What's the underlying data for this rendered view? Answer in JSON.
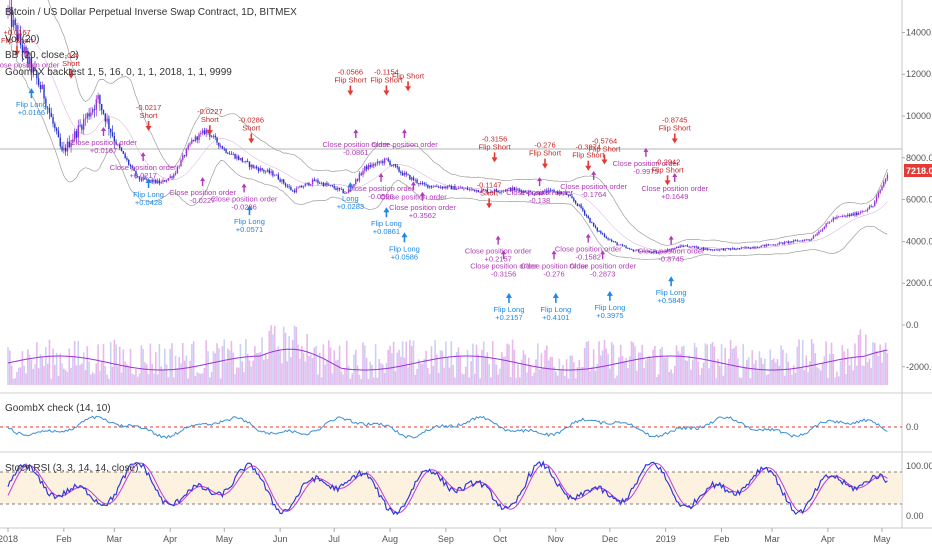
{
  "header": {
    "symbol_line": "Bitcoin / US Dollar Perpetual Inverse Swap Contract, 1D, BITMEX",
    "vol_line": "Vol (20)",
    "bb_line": "BB (20, close, 2)",
    "strategy_line": "GoombX backtest 1, 5, 16, 0, 1, 1, 2018, 1, 1, 9999"
  },
  "panes": {
    "check_label": "GoombX check (14, 10)",
    "rsi_label": "Stoch RSI (3, 3, 14, 14, close)"
  },
  "colors": {
    "up": "#9b30d9",
    "down": "#2633c9",
    "bb": "#9e9e9e",
    "vol_up": "#e1a8e8",
    "vol_down": "#bcc6f2",
    "vol_ma": "#9b30d9",
    "check_line": "#3a8fd6",
    "rsi_k": "#2f3ad9",
    "rsi_d": "#c23ad6",
    "rsi_band": "#fdf1e0",
    "ref_red": "#e53935"
  },
  "chart_data": {
    "type": "candlestick",
    "x_axis_labels": [
      "2018",
      "Feb",
      "Mar",
      "Apr",
      "May",
      "Jun",
      "Jul",
      "Aug",
      "Sep",
      "Oct",
      "Nov",
      "Dec",
      "2019",
      "Feb",
      "Mar",
      "Apr",
      "May"
    ],
    "price_axis": {
      "ticks": [
        "14000.0",
        "12000.0",
        "10000.0",
        "8000.0",
        "6000.0",
        "4000.0",
        "2000.0",
        "0.0",
        "-2000.0"
      ],
      "current_price": "7218.0",
      "guide_value": 8000
    },
    "check_axis_ticks": [
      "0.0"
    ],
    "rsi_axis_ticks": [
      "100.00",
      "0.00"
    ],
    "price_path": [
      [
        0,
        15000
      ],
      [
        8,
        13200
      ],
      [
        20,
        11000
      ],
      [
        30,
        8200
      ],
      [
        40,
        9500
      ],
      [
        50,
        10800
      ],
      [
        60,
        8700
      ],
      [
        72,
        7000
      ],
      [
        85,
        6800
      ],
      [
        92,
        7200
      ],
      [
        102,
        8800
      ],
      [
        110,
        9300
      ],
      [
        120,
        8400
      ],
      [
        135,
        7600
      ],
      [
        148,
        7200
      ],
      [
        158,
        6400
      ],
      [
        170,
        6900
      ],
      [
        180,
        6600
      ],
      [
        188,
        6300
      ],
      [
        198,
        7500
      ],
      [
        210,
        7900
      ],
      [
        218,
        7300
      ],
      [
        230,
        6700
      ],
      [
        242,
        6600
      ],
      [
        255,
        6500
      ],
      [
        268,
        6400
      ],
      [
        280,
        6500
      ],
      [
        292,
        6300
      ],
      [
        302,
        6400
      ],
      [
        310,
        6250
      ],
      [
        318,
        5600
      ],
      [
        326,
        4600
      ],
      [
        335,
        4000
      ],
      [
        345,
        3600
      ],
      [
        360,
        3450
      ],
      [
        375,
        3800
      ],
      [
        390,
        3600
      ],
      [
        405,
        3650
      ],
      [
        420,
        3800
      ],
      [
        432,
        3950
      ],
      [
        445,
        4100
      ],
      [
        458,
        5100
      ],
      [
        470,
        5300
      ],
      [
        480,
        5700
      ],
      [
        488,
        7200
      ]
    ],
    "annotations": [
      {
        "x": 5,
        "p": 13600,
        "type": "flip-short",
        "pct": "+0.0167",
        "label": "Flip Short"
      },
      {
        "x": 10,
        "p": 12600,
        "type": "close",
        "pct": "",
        "label": "Close position order"
      },
      {
        "x": 13,
        "p": 11000,
        "type": "flip-long",
        "pct": "+0.0166",
        "label": "Flip Long"
      },
      {
        "x": 35,
        "p": 12500,
        "type": "flip-short",
        "pct": "-0.4",
        "label": "Short"
      },
      {
        "x": 53,
        "p": 8900,
        "type": "close",
        "pct": "+0.0167",
        "label": "Close position order"
      },
      {
        "x": 75,
        "p": 7700,
        "type": "close",
        "pct": "+0.0217",
        "label": "Close position order"
      },
      {
        "x": 78,
        "p": 10000,
        "type": "flip-short",
        "pct": "-0.0217",
        "label": "Short"
      },
      {
        "x": 78,
        "p": 6700,
        "type": "flip-long",
        "pct": "+0.0428",
        "label": "Flip Long"
      },
      {
        "x": 112,
        "p": 9800,
        "type": "flip-short",
        "pct": "-0.0227",
        "label": "Short"
      },
      {
        "x": 108,
        "p": 6500,
        "type": "close",
        "pct": "-0.0227",
        "label": "Close position order"
      },
      {
        "x": 135,
        "p": 9400,
        "type": "flip-short",
        "pct": "-0.0286",
        "label": "Short"
      },
      {
        "x": 134,
        "p": 5400,
        "type": "flip-long",
        "pct": "+0.0571",
        "label": "Flip Long"
      },
      {
        "x": 131,
        "p": 6200,
        "type": "close",
        "pct": "-0.0286",
        "label": "Close position order"
      },
      {
        "x": 190,
        "p": 11700,
        "type": "flip-short",
        "pct": "-0.0566",
        "label": "Flip Short"
      },
      {
        "x": 190,
        "p": 6500,
        "type": "flip-long",
        "pct": "+0.0283",
        "label": "Long"
      },
      {
        "x": 193,
        "p": 8800,
        "type": "close",
        "pct": "-0.0861",
        "label": "Close position order"
      },
      {
        "x": 210,
        "p": 11700,
        "type": "flip-short",
        "pct": "-0.1154",
        "label": "Flip Short"
      },
      {
        "x": 207,
        "p": 6700,
        "type": "close",
        "pct": "-0.0566",
        "label": "Close position order"
      },
      {
        "x": 210,
        "p": 5300,
        "type": "flip-long",
        "pct": "+0.0861",
        "label": "Flip Long"
      },
      {
        "x": 222,
        "p": 11900,
        "type": "flip-short",
        "pct": "",
        "label": "Flip Short"
      },
      {
        "x": 220,
        "p": 8800,
        "type": "close",
        "pct": "",
        "label": "Close position order"
      },
      {
        "x": 225,
        "p": 6300,
        "type": "close",
        "pct": "",
        "label": "Close position order"
      },
      {
        "x": 230,
        "p": 5800,
        "type": "close",
        "pct": "+0.3562",
        "label": "Close position order"
      },
      {
        "x": 220,
        "p": 4100,
        "type": "flip-long",
        "pct": "+0.0586",
        "label": "Flip Long"
      },
      {
        "x": 270,
        "p": 8500,
        "type": "flip-short",
        "pct": "-0.3156",
        "label": "Flip Short"
      },
      {
        "x": 267,
        "p": 6300,
        "type": "flip-short",
        "pct": "-0.1147",
        "label": "Short"
      },
      {
        "x": 272,
        "p": 3700,
        "type": "close",
        "pct": "+0.2157",
        "label": "Close position order"
      },
      {
        "x": 275,
        "p": 3000,
        "type": "close",
        "pct": "-0.3156",
        "label": "Close position order"
      },
      {
        "x": 278,
        "p": 1200,
        "type": "flip-long",
        "pct": "+0.2157",
        "label": "Flip Long"
      },
      {
        "x": 298,
        "p": 8200,
        "type": "flip-short",
        "pct": "-0.276",
        "label": "Flip Short"
      },
      {
        "x": 295,
        "p": 6500,
        "type": "close",
        "pct": "-0.138",
        "label": "Close position order"
      },
      {
        "x": 303,
        "p": 3000,
        "type": "close",
        "pct": "-0.276",
        "label": "Close position order"
      },
      {
        "x": 304,
        "p": 1200,
        "type": "flip-long",
        "pct": "+0.4101",
        "label": "Flip Long"
      },
      {
        "x": 322,
        "p": 8100,
        "type": "flip-short",
        "pct": "-0.3974",
        "label": "Flip Short"
      },
      {
        "x": 331,
        "p": 8400,
        "type": "flip-short",
        "pct": "-0.5764",
        "label": "Flip Short"
      },
      {
        "x": 325,
        "p": 6800,
        "type": "close",
        "pct": "-0.1764",
        "label": "Close position order"
      },
      {
        "x": 322,
        "p": 3800,
        "type": "close",
        "pct": "-0.1582",
        "label": "Close position order"
      },
      {
        "x": 330,
        "p": 3000,
        "type": "close",
        "pct": "-0.2873",
        "label": "Close position order"
      },
      {
        "x": 334,
        "p": 1300,
        "type": "flip-long",
        "pct": "+0.3975",
        "label": "Flip Long"
      },
      {
        "x": 354,
        "p": 7900,
        "type": "close",
        "pct": "-0.9975",
        "label": "Close position order"
      },
      {
        "x": 370,
        "p": 9400,
        "type": "flip-short",
        "pct": "-0.8745",
        "label": "Flip Short"
      },
      {
        "x": 366,
        "p": 7400,
        "type": "flip-short",
        "pct": "-0.2942",
        "label": "Flip Short"
      },
      {
        "x": 370,
        "p": 6700,
        "type": "close",
        "pct": "+0.1649",
        "label": "Close position order"
      },
      {
        "x": 368,
        "p": 3700,
        "type": "close",
        "pct": "-0.8745",
        "label": "Close position order"
      },
      {
        "x": 368,
        "p": 2000,
        "type": "flip-long",
        "pct": "+0.5849",
        "label": "Flip Long"
      }
    ]
  }
}
